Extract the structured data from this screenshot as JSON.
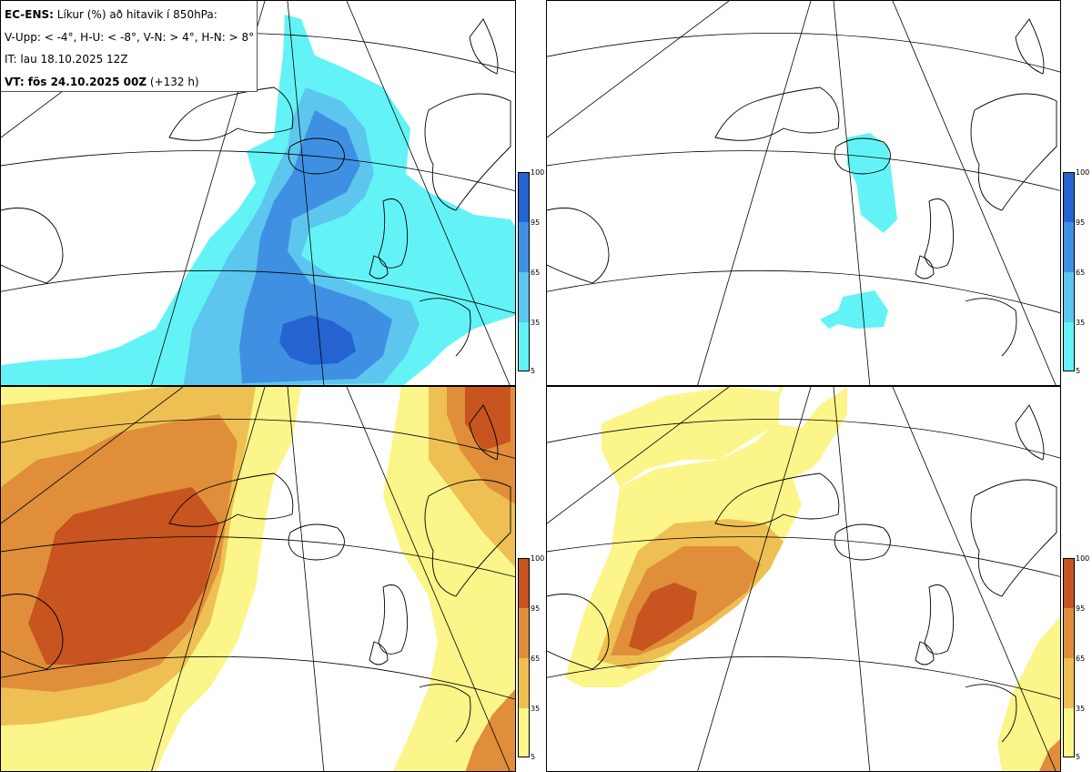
{
  "header": {
    "model_label": "EC-ENS:",
    "title_rest": "Líkur (%) að hitavik í 850hPa:",
    "categories_line": "V-Upp: < -4°, H-U: < -8°, V-N: > 4°, H-N: > 8°",
    "init_time": "IT: lau 18.10.2025 12Z",
    "valid_label": "VT: fös 24.10.2025 00Z",
    "lead_time": "(+132 h)"
  },
  "colorbar": {
    "ticks": [
      "100",
      "95",
      "65",
      "35",
      "5"
    ],
    "levels": [
      5,
      35,
      65,
      95,
      100
    ]
  },
  "panels": [
    {
      "id": "V-Upp",
      "threshold": "< -4°",
      "scheme": "cold"
    },
    {
      "id": "H-U",
      "threshold": "< -8°",
      "scheme": "cold"
    },
    {
      "id": "V-N",
      "threshold": "> 4°",
      "scheme": "warm"
    },
    {
      "id": "H-N",
      "threshold": "> 8°",
      "scheme": "warm"
    }
  ],
  "colors": {
    "cold": [
      "#63f3f7",
      "#5cc6ef",
      "#3f90e2",
      "#2463d0"
    ],
    "warm": [
      "#fcf58a",
      "#eec053",
      "#e08e3a",
      "#c8541f"
    ],
    "coast": "#000000",
    "grid": "#000000",
    "background": "#ffffff"
  }
}
